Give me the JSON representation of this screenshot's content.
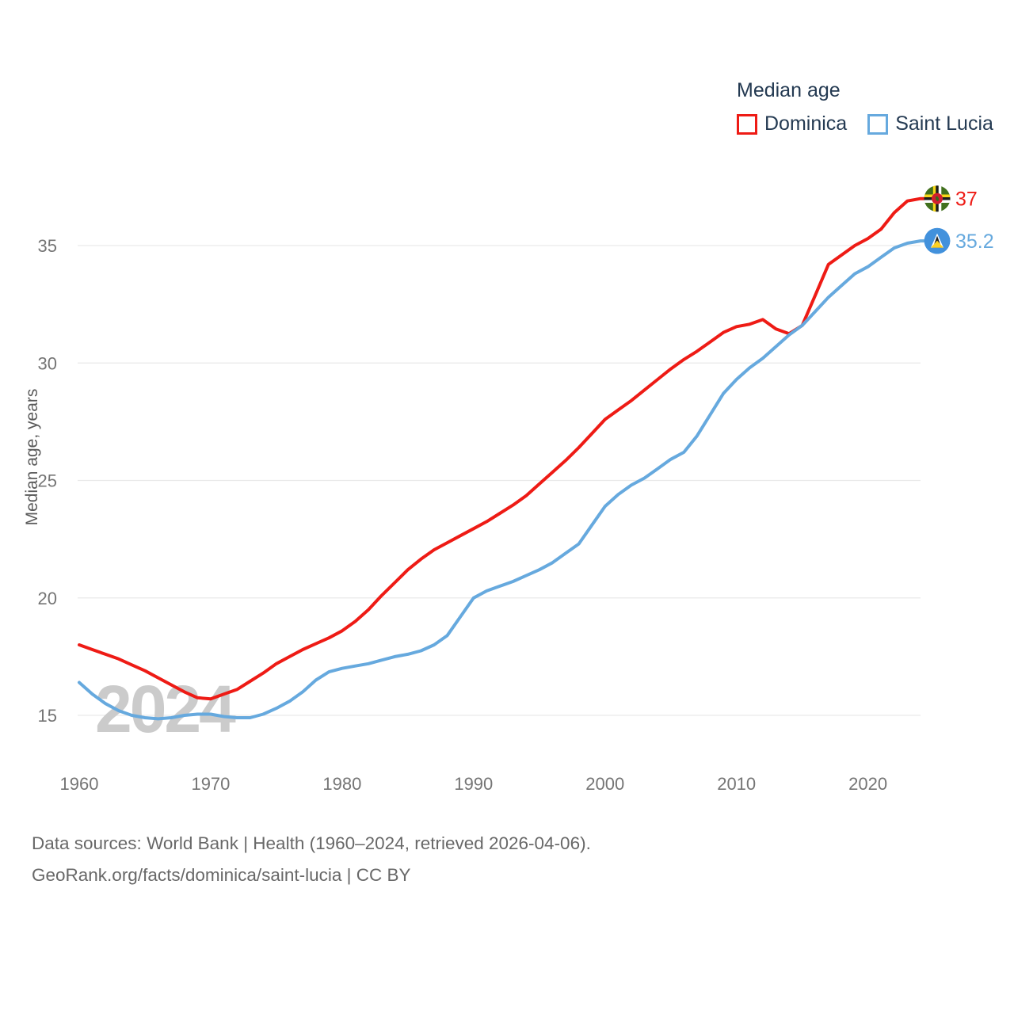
{
  "legend": {
    "title": "Median age",
    "items": [
      {
        "label": "Dominica",
        "color": "#ee1b15"
      },
      {
        "label": "Saint Lucia",
        "color": "#66a9de"
      }
    ]
  },
  "watermark": "2024",
  "footer": {
    "line1": "Data sources: World Bank | Health (1960–2024, retrieved 2026-04-06).",
    "line2": "GeoRank.org/facts/dominica/saint-lucia | CC BY"
  },
  "chart_data": {
    "type": "line",
    "title": "Median age",
    "xlabel": "",
    "ylabel": "Median age, years",
    "grid": "horizontal",
    "legend_position": "top-right",
    "xlim": [
      1960,
      2024
    ],
    "ylim": [
      13.5,
      38.5
    ],
    "xticks": [
      1960,
      1970,
      1980,
      1990,
      2000,
      2010,
      2020
    ],
    "yticks": [
      15,
      20,
      25,
      30,
      35
    ],
    "x": [
      1960,
      1961,
      1962,
      1963,
      1964,
      1965,
      1966,
      1967,
      1968,
      1969,
      1970,
      1971,
      1972,
      1973,
      1974,
      1975,
      1976,
      1977,
      1978,
      1979,
      1980,
      1981,
      1982,
      1983,
      1984,
      1985,
      1986,
      1987,
      1988,
      1989,
      1990,
      1991,
      1992,
      1993,
      1994,
      1995,
      1996,
      1997,
      1998,
      1999,
      2000,
      2001,
      2002,
      2003,
      2004,
      2005,
      2006,
      2007,
      2008,
      2009,
      2010,
      2011,
      2012,
      2013,
      2014,
      2015,
      2016,
      2017,
      2018,
      2019,
      2020,
      2021,
      2022,
      2023,
      2024
    ],
    "series": [
      {
        "name": "Dominica",
        "color": "#ee1b15",
        "end_label": "37",
        "flag": "dominica",
        "values": [
          18.0,
          17.8,
          17.6,
          17.4,
          17.15,
          16.9,
          16.6,
          16.3,
          16.0,
          15.75,
          15.7,
          15.9,
          16.1,
          16.45,
          16.8,
          17.2,
          17.5,
          17.8,
          18.05,
          18.3,
          18.6,
          19.0,
          19.5,
          20.1,
          20.65,
          21.2,
          21.65,
          22.05,
          22.35,
          22.65,
          22.95,
          23.25,
          23.6,
          23.95,
          24.35,
          24.85,
          25.35,
          25.85,
          26.4,
          27.0,
          27.6,
          28.0,
          28.4,
          28.85,
          29.3,
          29.75,
          30.15,
          30.5,
          30.9,
          31.3,
          31.55,
          31.65,
          31.85,
          31.45,
          31.25,
          31.6,
          32.9,
          34.2,
          34.6,
          35.0,
          35.3,
          35.7,
          36.4,
          36.9,
          37.0
        ]
      },
      {
        "name": "Saint Lucia",
        "color": "#66a9de",
        "end_label": "35.2",
        "flag": "saint-lucia",
        "values": [
          16.4,
          15.9,
          15.5,
          15.2,
          15.0,
          14.9,
          14.85,
          14.9,
          15.0,
          15.05,
          15.05,
          14.95,
          14.9,
          14.9,
          15.05,
          15.3,
          15.6,
          16.0,
          16.5,
          16.85,
          17.0,
          17.1,
          17.2,
          17.35,
          17.5,
          17.6,
          17.75,
          18.0,
          18.4,
          19.2,
          20.0,
          20.3,
          20.5,
          20.7,
          20.95,
          21.2,
          21.5,
          21.9,
          22.3,
          23.1,
          23.9,
          24.4,
          24.8,
          25.1,
          25.5,
          25.9,
          26.2,
          26.9,
          27.8,
          28.7,
          29.3,
          29.8,
          30.2,
          30.7,
          31.2,
          31.6,
          32.2,
          32.8,
          33.3,
          33.8,
          34.1,
          34.5,
          34.9,
          35.1,
          35.2
        ]
      }
    ]
  }
}
